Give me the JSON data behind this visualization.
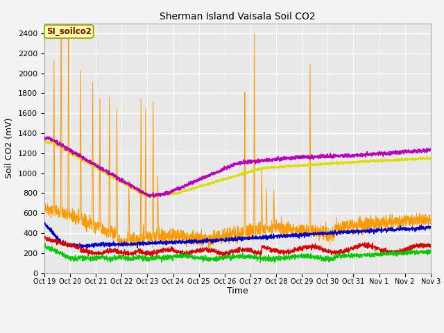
{
  "title": "Sherman Island Vaisala Soil CO2",
  "ylabel": "Soil CO2 (mV)",
  "xlabel": "Time",
  "watermark": "SI_soilco2",
  "ylim": [
    0,
    2500
  ],
  "yticks": [
    0,
    200,
    400,
    600,
    800,
    1000,
    1200,
    1400,
    1600,
    1800,
    2000,
    2200,
    2400
  ],
  "xtick_labels": [
    "Oct 19",
    "Oct 20",
    "Oct 21",
    "Oct 22",
    "Oct 23",
    "Oct 24",
    "Oct 25",
    "Oct 26",
    "Oct 27",
    "Oct 28",
    "Oct 29",
    "Oct 30",
    "Oct 31",
    "Nov 1",
    "Nov 2",
    "Nov 3"
  ],
  "colors": {
    "CO2_1": "#dd0000",
    "CO2_2": "#ff9900",
    "CO2_3": "#dddd00",
    "CO2_4": "#00cc00",
    "CO2_5": "#0000cc",
    "CO2_6": "#bb00bb"
  },
  "axes_bg_color": "#e8e8e8",
  "fig_bg_color": "#f4f4f4",
  "grid_color": "#ffffff",
  "watermark_bg": "#ffffaa",
  "watermark_border": "#999900",
  "watermark_text_color": "#880000"
}
